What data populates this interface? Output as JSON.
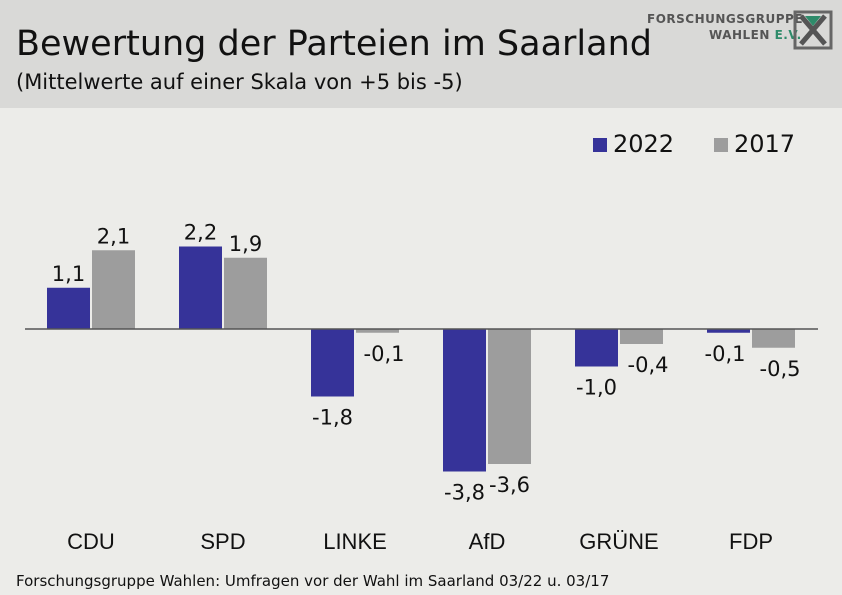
{
  "header": {
    "title": "Bewertung der Parteien im Saarland",
    "subtitle": "(Mittelwerte auf einer Skala von +5 bis -5)"
  },
  "logo": {
    "line1": "FORSCHUNGSGRUPPE",
    "line2_main": "WAHLEN",
    "line2_suffix": "E.V."
  },
  "footer": {
    "source": "Forschungsgruppe Wahlen: Umfragen vor der Wahl im Saarland 03/22 u. 03/17"
  },
  "colors": {
    "series_2022": "#363399",
    "series_2017": "#9d9d9d"
  },
  "chart_data": {
    "type": "bar",
    "categories": [
      "CDU",
      "SPD",
      "LINKE",
      "AfD",
      "GRÜNE",
      "FDP"
    ],
    "series": [
      {
        "name": "2022",
        "values": [
          1.1,
          2.2,
          -1.8,
          -3.8,
          -1.0,
          -0.1
        ],
        "labels": [
          "1,1",
          "2,2",
          "-1,8",
          "-3,8",
          "-1,0",
          "-0,1"
        ]
      },
      {
        "name": "2017",
        "values": [
          2.1,
          1.9,
          -0.1,
          -3.6,
          -0.4,
          -0.5
        ],
        "labels": [
          "2,1",
          "1,9",
          "-0,1",
          "-3,6",
          "-0,4",
          "-0,5"
        ]
      }
    ],
    "legend_position": "top-right",
    "grid": false,
    "title": "Bewertung der Parteien im Saarland",
    "subtitle": "(Mittelwerte auf einer Skala von +5 bis -5)"
  }
}
